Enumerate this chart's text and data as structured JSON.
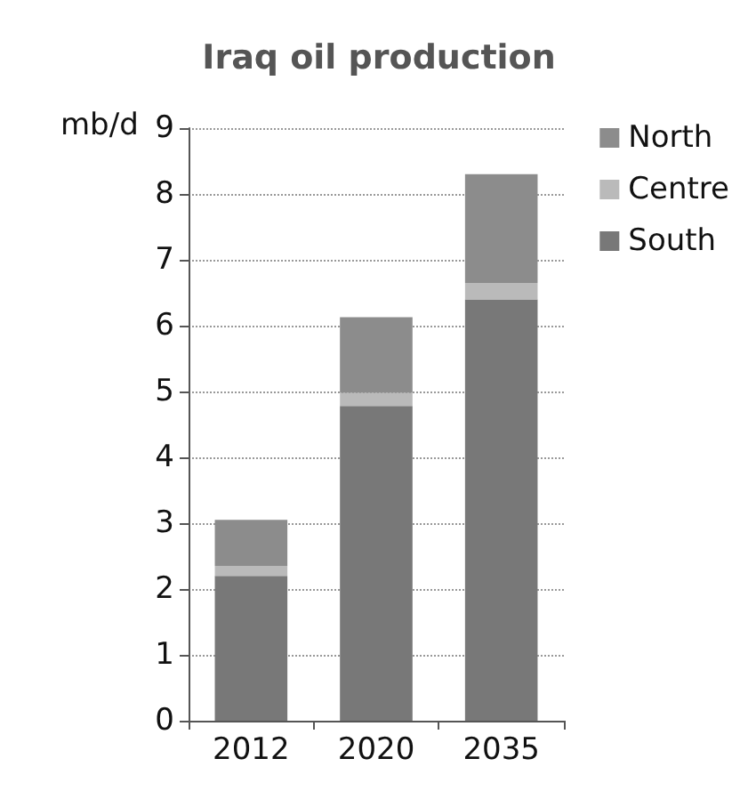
{
  "chart_data": {
    "type": "bar",
    "title": "Iraq oil production",
    "ylabel": "mb/d",
    "categories": [
      "2012",
      "2020",
      "2035"
    ],
    "stacked": true,
    "series": [
      {
        "name": "South",
        "color": "#787878",
        "values": [
          2.2,
          4.78,
          6.4
        ]
      },
      {
        "name": "Centre",
        "color": "#bababa",
        "values": [
          0.15,
          0.2,
          0.25
        ]
      },
      {
        "name": "North",
        "color": "#8c8c8c",
        "values": [
          0.7,
          1.15,
          1.65
        ]
      }
    ],
    "ylim": [
      0,
      9
    ],
    "yticks": [
      0,
      1,
      2,
      3,
      4,
      5,
      6,
      7,
      8,
      9
    ],
    "grid": "y",
    "legend": "top right"
  }
}
